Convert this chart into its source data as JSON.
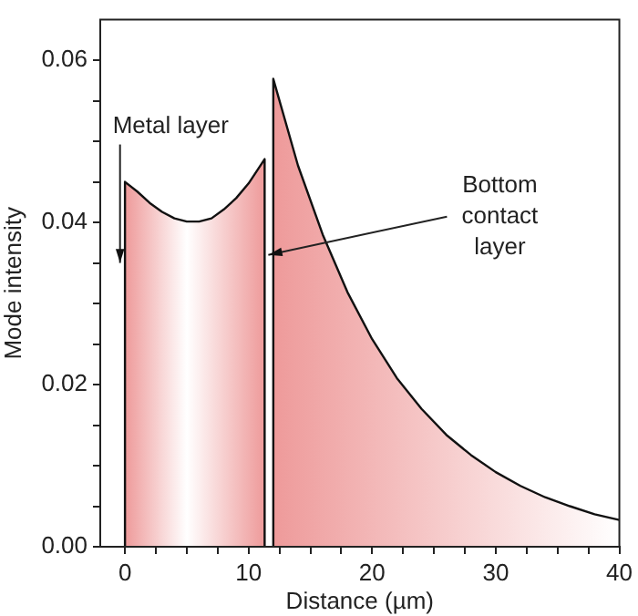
{
  "chart_data": {
    "type": "area",
    "xlabel": "Distance (µm)",
    "ylabel": "Mode intensity",
    "xlim": [
      -2,
      40
    ],
    "xticks": [
      0,
      {
        "value": 2.5,
        "label": null
      },
      {
        "value": 5,
        "label": null
      },
      {
        "value": 7.5,
        "label": null
      },
      10,
      {
        "value": 12.5,
        "label": null
      },
      {
        "value": 15,
        "label": null
      },
      {
        "value": 17.5,
        "label": null
      },
      20,
      {
        "value": 22.5,
        "label": null
      },
      {
        "value": 25,
        "label": null
      },
      {
        "value": 27.5,
        "label": null
      },
      30,
      {
        "value": 32.5,
        "label": null
      },
      {
        "value": 35,
        "label": null
      },
      {
        "value": 37.5,
        "label": null
      },
      40
    ],
    "ylim": [
      0,
      0.065
    ],
    "yticks": [
      {
        "value": 0,
        "label": "0.00"
      },
      {
        "value": 0.005,
        "label": null
      },
      {
        "value": 0.01,
        "label": null
      },
      {
        "value": 0.015,
        "label": null
      },
      {
        "value": 0.02,
        "label": "0.02"
      },
      {
        "value": 0.025,
        "label": null
      },
      {
        "value": 0.03,
        "label": null
      },
      {
        "value": 0.035,
        "label": null
      },
      {
        "value": 0.04,
        "label": "0.04"
      },
      {
        "value": 0.045,
        "label": null
      },
      {
        "value": 0.05,
        "label": null
      },
      {
        "value": 0.055,
        "label": null
      },
      {
        "value": 0.06,
        "label": "0.06"
      }
    ],
    "grid": false,
    "legend": false,
    "series": [
      {
        "color": "#ee9a9a",
        "x": [
          0,
          0,
          1,
          2,
          3,
          4,
          5,
          6,
          7,
          8,
          9,
          10,
          11.3,
          11.3
        ],
        "values": [
          0,
          0.045,
          0.0438,
          0.0424,
          0.0413,
          0.0405,
          0.0401,
          0.0401,
          0.0405,
          0.0416,
          0.043,
          0.0448,
          0.0478,
          0
        ]
      },
      {
        "color": "#ee9a9a",
        "x": [
          12,
          12,
          14,
          16,
          18,
          20,
          22,
          24,
          26,
          28,
          30,
          32,
          34,
          36,
          38,
          40
        ],
        "values": [
          0,
          0.0577,
          0.047,
          0.0385,
          0.0314,
          0.0256,
          0.0208,
          0.017,
          0.0138,
          0.0113,
          0.0092,
          0.0075,
          0.0061,
          0.005,
          0.004,
          0.0033
        ]
      }
    ],
    "annotations": [
      {
        "text": "Metal layer",
        "x": -0.4,
        "y": 0.035
      },
      {
        "text": "Bottom contact layer",
        "x": 11.6,
        "y": 0.036
      }
    ]
  }
}
